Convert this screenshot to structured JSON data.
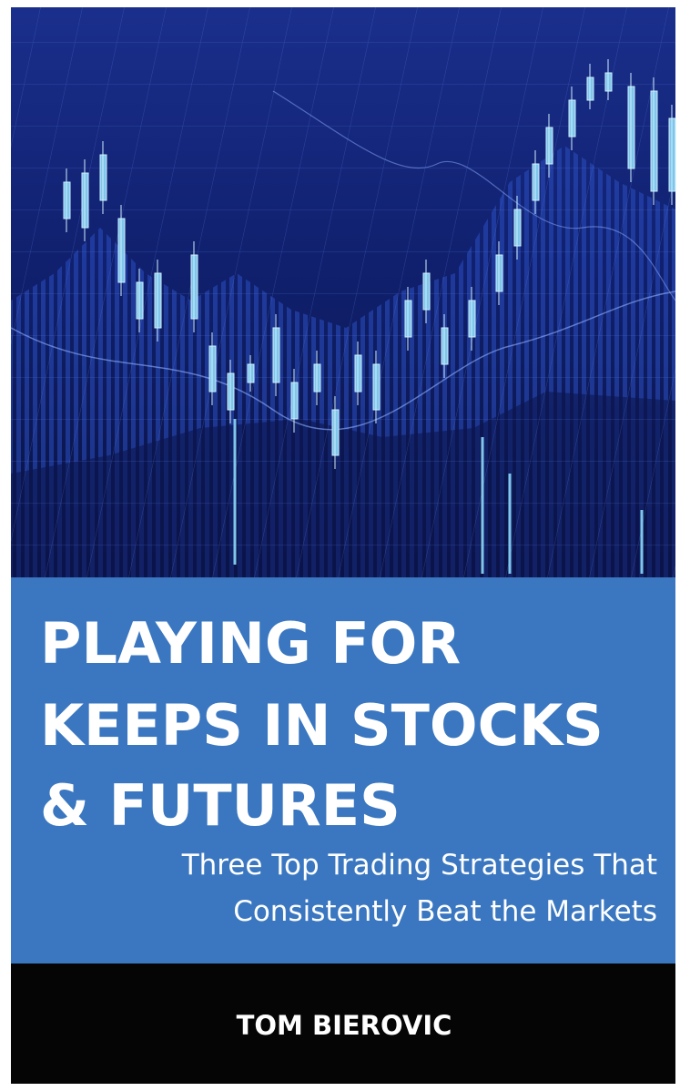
{
  "cover": {
    "title": [
      "PLAYING FOR",
      "KEEPS IN STOCKS",
      "& FUTURES"
    ],
    "subtitle": [
      "Three Top Trading Strategies That",
      "Consistently Beat the Markets"
    ],
    "author": "TOM BIEROVIC"
  }
}
